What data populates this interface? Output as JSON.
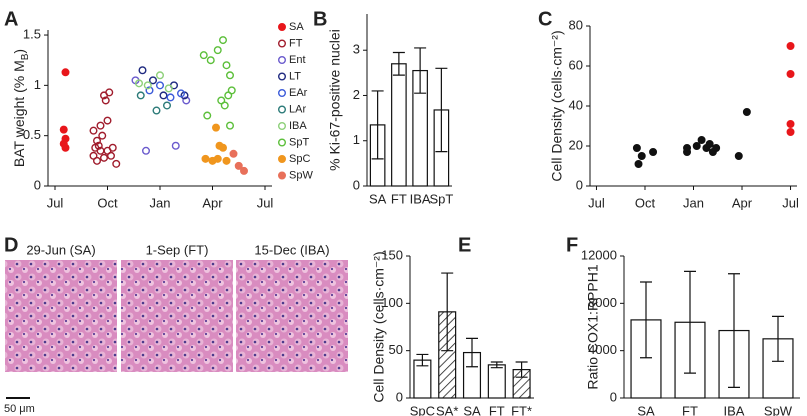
{
  "chart_data": [
    {
      "type": "scatter",
      "label": "A",
      "y_label": [
        "BAT weight (% M",
        "B",
        ")"
      ],
      "xlim": [
        -0.4,
        12.4
      ],
      "xticks": [
        {
          "value": 0,
          "label": "Jul"
        },
        {
          "value": 3,
          "label": "Oct"
        },
        {
          "value": 6,
          "label": "Jan"
        },
        {
          "value": 9,
          "label": "Apr"
        },
        {
          "value": 12,
          "label": "Jul"
        }
      ],
      "ylim": [
        0,
        1.55
      ],
      "yticks": [
        0,
        0.5,
        1,
        1.5
      ],
      "series": [
        {
          "name": "SA",
          "color": "#e8161b",
          "filled": true,
          "x": [
            0.6,
            0.5,
            0.6,
            0.5,
            0.6
          ],
          "values": [
            1.13,
            0.56,
            0.47,
            0.42,
            0.38
          ]
        },
        {
          "name": "FT",
          "color": "#a01c2c",
          "filled": false,
          "x": [
            2.2,
            2.4,
            2.6,
            2.8,
            3.0,
            2.3,
            2.5,
            2.7,
            2.9,
            3.1,
            2.2,
            2.6,
            3.0,
            3.2,
            2.4,
            2.8,
            3.3,
            3.5
          ],
          "values": [
            0.55,
            0.45,
            0.6,
            0.9,
            0.65,
            0.38,
            0.4,
            0.5,
            0.85,
            0.93,
            0.3,
            0.35,
            0.35,
            0.3,
            0.25,
            0.28,
            0.38,
            0.22
          ]
        },
        {
          "name": "Ent",
          "color": "#6a5acd",
          "filled": false,
          "x": [
            4.6,
            5.2,
            6.9,
            7.5
          ],
          "values": [
            1.05,
            0.35,
            0.4,
            0.85
          ]
        },
        {
          "name": "LT",
          "color": "#1f2a80",
          "filled": false,
          "x": [
            5.0,
            5.6,
            6.2,
            6.8,
            7.4
          ],
          "values": [
            1.15,
            1.05,
            0.9,
            1.0,
            0.9
          ]
        },
        {
          "name": "EAr",
          "color": "#3b5bd9",
          "filled": false,
          "x": [
            5.4,
            6.0,
            6.6,
            7.2
          ],
          "values": [
            0.95,
            1.0,
            0.88,
            0.92
          ]
        },
        {
          "name": "LAr",
          "color": "#2b7a78",
          "filled": false,
          "x": [
            4.9,
            5.8,
            6.4
          ],
          "values": [
            0.9,
            0.75,
            0.8
          ]
        },
        {
          "name": "IBA",
          "color": "#8ed07a",
          "filled": false,
          "x": [
            4.8,
            5.3,
            6.0,
            6.5
          ],
          "values": [
            1.02,
            1.0,
            1.1,
            0.97
          ]
        },
        {
          "name": "SpT",
          "color": "#5cbf3a",
          "filled": false,
          "x": [
            8.5,
            8.9,
            9.3,
            9.6,
            9.8,
            10.0,
            10.1,
            9.5,
            8.7,
            9.9,
            9.7,
            10.0
          ],
          "values": [
            1.3,
            1.25,
            1.35,
            1.45,
            1.2,
            1.1,
            0.95,
            0.85,
            0.7,
            0.9,
            0.8,
            0.6
          ]
        },
        {
          "name": "SpC",
          "color": "#f0961e",
          "filled": true,
          "x": [
            8.6,
            9.0,
            9.2,
            9.4,
            9.6,
            9.8,
            9.3
          ],
          "values": [
            0.27,
            0.25,
            0.58,
            0.4,
            0.38,
            0.25,
            0.27
          ]
        },
        {
          "name": "SpW",
          "color": "#e8705a",
          "filled": true,
          "x": [
            10.2,
            10.5,
            10.8
          ],
          "values": [
            0.32,
            0.2,
            0.15
          ]
        }
      ]
    },
    {
      "type": "bar",
      "label": "B",
      "y_label": "% Ki-67-positive nuclei",
      "categories": [
        "SA",
        "FT",
        "IBA",
        "SpT"
      ],
      "values": [
        1.35,
        2.7,
        2.55,
        1.68
      ],
      "errors": [
        0.75,
        0.25,
        0.5,
        0.92
      ],
      "ylim": [
        0,
        3.8
      ],
      "yticks": [
        0,
        1,
        2,
        3
      ]
    },
    {
      "type": "scatter",
      "label": "C",
      "y_label": "Cell Density (cells·cm⁻²)",
      "xlim": [
        -0.4,
        12.4
      ],
      "xticks": [
        {
          "value": 0,
          "label": "Jul"
        },
        {
          "value": 3,
          "label": "Oct"
        },
        {
          "value": 6,
          "label": "Jan"
        },
        {
          "value": 9,
          "label": "Apr"
        },
        {
          "value": 12,
          "label": "Jul"
        }
      ],
      "ylim": [
        0,
        80
      ],
      "yticks": [
        0,
        20,
        40,
        60,
        80
      ],
      "series": [
        {
          "color": "#111111",
          "filled": true,
          "x": [
            2.5,
            2.8,
            2.6,
            3.5,
            5.6,
            5.6,
            6.2,
            6.5,
            6.8,
            7.0,
            7.2,
            7.4,
            8.8,
            9.3
          ],
          "values": [
            19,
            15,
            11,
            17,
            17,
            19,
            20,
            23,
            19,
            21,
            17,
            19,
            15,
            37
          ]
        },
        {
          "color": "#e8161b",
          "filled": true,
          "x": [
            12,
            12,
            12,
            12
          ],
          "values": [
            70,
            56,
            31,
            27
          ]
        }
      ]
    },
    {
      "type": "image",
      "label": "D",
      "panels": [
        "29-Jun (SA)",
        "1-Sep (FT)",
        "15-Dec (IBA)"
      ],
      "scale_bar": "50 μm"
    },
    {
      "type": "bar",
      "label": "E",
      "y_label": "Cell Density (cells·cm⁻²)",
      "categories": [
        "SpC",
        "SA*",
        "SA",
        "FT",
        "FT*"
      ],
      "values": [
        40,
        91,
        48,
        35,
        30
      ],
      "errors": [
        6,
        41,
        15,
        3,
        8
      ],
      "hatched": [
        false,
        true,
        false,
        false,
        true
      ],
      "ylim": [
        0,
        150
      ],
      "yticks": [
        0,
        50,
        100,
        150
      ]
    },
    {
      "type": "bar",
      "label": "F",
      "y_label": "Ratio COX1:RPPH1",
      "categories": [
        "SA",
        "FT",
        "IBA",
        "SpW"
      ],
      "values": [
        6600,
        6400,
        5700,
        5000
      ],
      "errors": [
        3200,
        4300,
        4800,
        1900
      ],
      "ylim": [
        0,
        12000
      ],
      "yticks": [
        0,
        4000,
        8000,
        12000
      ]
    }
  ]
}
